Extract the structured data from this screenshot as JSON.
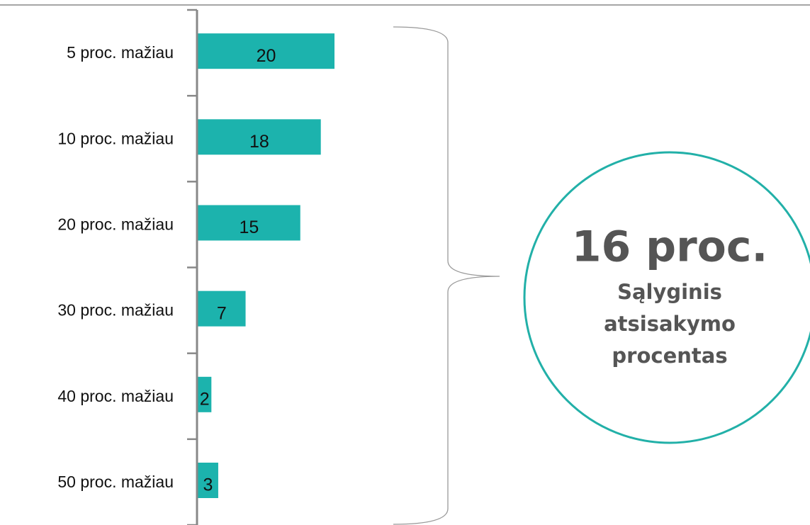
{
  "chart_data": {
    "type": "bar",
    "orientation": "horizontal",
    "categories": [
      "5 proc. mažiau",
      "10 proc. mažiau",
      "20 proc. mažiau",
      "30 proc. mažiau",
      "40 proc. mažiau",
      "50 proc. mažiau"
    ],
    "values": [
      20,
      18,
      15,
      7,
      2,
      3
    ],
    "color": "#1cb3ad",
    "callout": {
      "title": "16 proc.",
      "lines": [
        "Sąlyginis",
        "atsisakymo",
        "procentas"
      ],
      "color": "#22b0a8"
    }
  }
}
